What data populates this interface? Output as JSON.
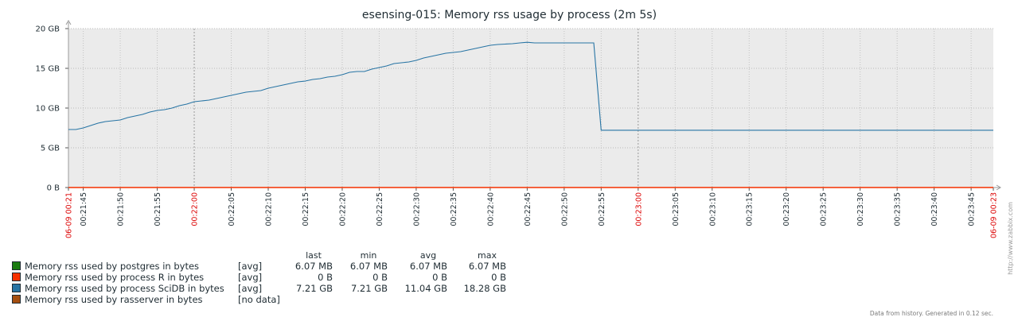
{
  "chart_data": {
    "type": "line",
    "title": "esensing-015: Memory rss usage by process (2m 5s)",
    "y_ticks": [
      "0 B",
      "5 GB",
      "10 GB",
      "15 GB",
      "20 GB"
    ],
    "ylim": [
      0,
      20
    ],
    "x_ticks": [
      {
        "label": "06-09 00:21",
        "t": 0,
        "major": true,
        "edge": true
      },
      {
        "label": "00:21:45",
        "t": 2
      },
      {
        "label": "00:21:50",
        "t": 7
      },
      {
        "label": "00:21:55",
        "t": 12
      },
      {
        "label": "00:22:00",
        "t": 17,
        "major": true
      },
      {
        "label": "00:22:05",
        "t": 22
      },
      {
        "label": "00:22:10",
        "t": 27
      },
      {
        "label": "00:22:15",
        "t": 32
      },
      {
        "label": "00:22:20",
        "t": 37
      },
      {
        "label": "00:22:25",
        "t": 42
      },
      {
        "label": "00:22:30",
        "t": 47
      },
      {
        "label": "00:22:35",
        "t": 52
      },
      {
        "label": "00:22:40",
        "t": 57
      },
      {
        "label": "00:22:45",
        "t": 62
      },
      {
        "label": "00:22:50",
        "t": 67
      },
      {
        "label": "00:22:55",
        "t": 72
      },
      {
        "label": "00:23:00",
        "t": 77,
        "major": true
      },
      {
        "label": "00:23:05",
        "t": 82
      },
      {
        "label": "00:23:10",
        "t": 87
      },
      {
        "label": "00:23:15",
        "t": 92
      },
      {
        "label": "00:23:20",
        "t": 97
      },
      {
        "label": "00:23:25",
        "t": 102
      },
      {
        "label": "00:23:30",
        "t": 107
      },
      {
        "label": "00:23:35",
        "t": 112
      },
      {
        "label": "00:23:40",
        "t": 117
      },
      {
        "label": "00:23:45",
        "t": 122
      },
      {
        "label": "06-09 00:23",
        "t": 125,
        "major": true,
        "edge": true
      }
    ],
    "xlim": [
      0,
      125
    ],
    "grid": true,
    "series": [
      {
        "name": "Memory rss used by postgres in bytes",
        "color": "#1a7c11",
        "values": []
      },
      {
        "name": "Memory rss used by process R in bytes",
        "color": "#f63100",
        "values": [
          [
            0,
            0
          ],
          [
            125,
            0
          ]
        ]
      },
      {
        "name": "Memory rss used by process SciDB in bytes",
        "color": "#2774a4",
        "values": [
          [
            0,
            7.3
          ],
          [
            1,
            7.3
          ],
          [
            2,
            7.5
          ],
          [
            3,
            7.8
          ],
          [
            4,
            8.1
          ],
          [
            5,
            8.3
          ],
          [
            6,
            8.4
          ],
          [
            7,
            8.5
          ],
          [
            8,
            8.8
          ],
          [
            9,
            9.0
          ],
          [
            10,
            9.2
          ],
          [
            11,
            9.5
          ],
          [
            12,
            9.7
          ],
          [
            13,
            9.8
          ],
          [
            14,
            10.0
          ],
          [
            15,
            10.3
          ],
          [
            16,
            10.5
          ],
          [
            17,
            10.8
          ],
          [
            18,
            10.9
          ],
          [
            19,
            11.0
          ],
          [
            20,
            11.2
          ],
          [
            21,
            11.4
          ],
          [
            22,
            11.6
          ],
          [
            23,
            11.8
          ],
          [
            24,
            12.0
          ],
          [
            25,
            12.1
          ],
          [
            26,
            12.2
          ],
          [
            27,
            12.5
          ],
          [
            28,
            12.7
          ],
          [
            29,
            12.9
          ],
          [
            30,
            13.1
          ],
          [
            31,
            13.3
          ],
          [
            32,
            13.4
          ],
          [
            33,
            13.6
          ],
          [
            34,
            13.7
          ],
          [
            35,
            13.9
          ],
          [
            36,
            14.0
          ],
          [
            37,
            14.2
          ],
          [
            38,
            14.5
          ],
          [
            39,
            14.6
          ],
          [
            40,
            14.6
          ],
          [
            41,
            14.9
          ],
          [
            42,
            15.1
          ],
          [
            43,
            15.3
          ],
          [
            44,
            15.6
          ],
          [
            45,
            15.7
          ],
          [
            46,
            15.8
          ],
          [
            47,
            16.0
          ],
          [
            48,
            16.3
          ],
          [
            49,
            16.5
          ],
          [
            50,
            16.7
          ],
          [
            51,
            16.9
          ],
          [
            52,
            17.0
          ],
          [
            53,
            17.1
          ],
          [
            54,
            17.3
          ],
          [
            55,
            17.5
          ],
          [
            56,
            17.7
          ],
          [
            57,
            17.9
          ],
          [
            58,
            18.0
          ],
          [
            59,
            18.05
          ],
          [
            60,
            18.1
          ],
          [
            61,
            18.2
          ],
          [
            62,
            18.28
          ],
          [
            63,
            18.2
          ],
          [
            64,
            18.2
          ],
          [
            65,
            18.2
          ],
          [
            66,
            18.2
          ],
          [
            67,
            18.2
          ],
          [
            68,
            18.2
          ],
          [
            69,
            18.2
          ],
          [
            70,
            18.2
          ],
          [
            71,
            18.2
          ],
          [
            72,
            7.21
          ],
          [
            80,
            7.21
          ],
          [
            90,
            7.21
          ],
          [
            100,
            7.21
          ],
          [
            110,
            7.21
          ],
          [
            120,
            7.21
          ],
          [
            125,
            7.21
          ]
        ]
      },
      {
        "name": "Memory rss used by rasserver in bytes",
        "color": "#a54f10",
        "values": []
      }
    ],
    "legend": {
      "placement": "bottom-left",
      "headers": [
        "last",
        "min",
        "avg",
        "max"
      ],
      "rows": [
        {
          "name": "Memory rss used by postgres in bytes",
          "color": "#1a7c11",
          "func": "[avg]",
          "last": "6.07 MB",
          "min": "6.07 MB",
          "avg": "6.07 MB",
          "max": "6.07 MB"
        },
        {
          "name": "Memory rss used by process R in bytes",
          "color": "#f63100",
          "func": "[avg]",
          "last": "0 B",
          "min": "0 B",
          "avg": "0 B",
          "max": "0 B"
        },
        {
          "name": "Memory rss used by process SciDB in bytes",
          "color": "#2774a4",
          "func": "[avg]",
          "last": "7.21 GB",
          "min": "7.21 GB",
          "avg": "11.04 GB",
          "max": "18.28 GB"
        },
        {
          "name": "Memory rss used by rasserver in bytes",
          "color": "#a54f10",
          "func": "[no data]",
          "last": "",
          "min": "",
          "avg": "",
          "max": ""
        }
      ]
    },
    "footer": "Data from history. Generated in 0.12 sec.",
    "watermark": "http://www.zabbix.com"
  }
}
